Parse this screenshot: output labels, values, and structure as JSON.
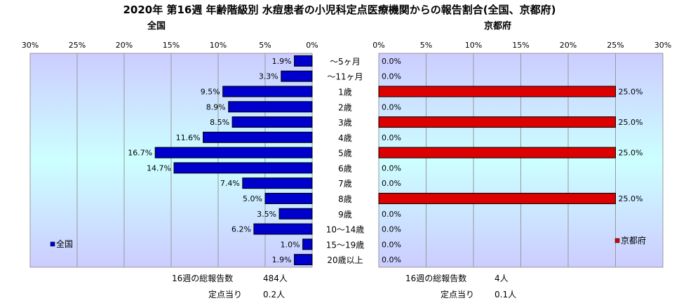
{
  "title": "2020年 第16週 年齢階級別 水痘患者の小児科定点医療機関からの報告割合(全国、京都府)",
  "categories": [
    "～5ヶ月",
    "～11ヶ月",
    "1歳",
    "2歳",
    "3歳",
    "4歳",
    "5歳",
    "6歳",
    "7歳",
    "8歳",
    "9歳",
    "10～14歳",
    "15～19歳",
    "20歳以上"
  ],
  "chart_data": [
    {
      "type": "bar",
      "title": "全国",
      "orientation": "horizontal-reversed",
      "xlim": [
        0,
        30
      ],
      "tick_labels": [
        "30%",
        "25%",
        "20%",
        "15%",
        "10%",
        "5%",
        "0%"
      ],
      "series": [
        {
          "name": "全国",
          "values": [
            1.9,
            3.3,
            9.5,
            8.9,
            8.5,
            11.6,
            16.7,
            14.7,
            7.4,
            5.0,
            3.5,
            6.2,
            1.0,
            1.9
          ]
        }
      ],
      "value_labels": [
        "1.9%",
        "3.3%",
        "9.5%",
        "8.9%",
        "8.5%",
        "11.6%",
        "16.7%",
        "14.7%",
        "7.4%",
        "5.0%",
        "3.5%",
        "6.2%",
        "1.0%",
        "1.9%"
      ],
      "bar_color": "#0000cc",
      "grid": true,
      "legend": "bottom-left"
    },
    {
      "type": "bar",
      "title": "京都府",
      "orientation": "horizontal",
      "xlim": [
        0,
        30
      ],
      "tick_labels": [
        "0%",
        "5%",
        "10%",
        "15%",
        "20%",
        "25%",
        "30%"
      ],
      "series": [
        {
          "name": "京都府",
          "values": [
            0.0,
            0.0,
            25.0,
            0.0,
            25.0,
            0.0,
            25.0,
            0.0,
            0.0,
            25.0,
            0.0,
            0.0,
            0.0,
            0.0
          ]
        }
      ],
      "value_labels": [
        "0.0%",
        "0.0%",
        "25.0%",
        "0.0%",
        "25.0%",
        "0.0%",
        "25.0%",
        "0.0%",
        "0.0%",
        "25.0%",
        "0.0%",
        "0.0%",
        "0.0%",
        "0.0%"
      ],
      "bar_color": "#dd0000",
      "grid": true,
      "legend": "bottom-right"
    }
  ],
  "footer": {
    "national": {
      "total_label": "16週の総報告数",
      "total_value": "484人",
      "per_label": "定点当り",
      "per_value": "0.2人"
    },
    "kyoto": {
      "total_label": "16週の総報告数",
      "total_value": "4人",
      "per_label": "定点当り",
      "per_value": "0.1人"
    }
  },
  "colors": {
    "plot_top": "#ccccff",
    "plot_mid": "#ccffff",
    "plot_bottom": "#ccccff",
    "national_bar": "#0000cc",
    "kyoto_bar": "#dd0000"
  }
}
